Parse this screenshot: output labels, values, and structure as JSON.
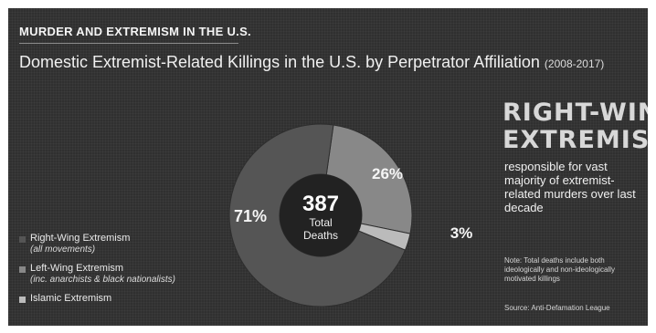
{
  "kicker": "MURDER AND EXTREMISM IN THE U.S.",
  "title": "Domestic Extremist-Related Killings in the U.S. by Perpetrator Affiliation",
  "title_years": "(2008-2017)",
  "headline": {
    "line1": "RIGHT-WING",
    "line2": "EXTREMISTS"
  },
  "blurb": "responsible for vast majority of extremist-related murders over last decade",
  "note": "Note: Total deaths include both ideologically and non-ideologically motivated killings",
  "source": "Source: Anti-Defamation League",
  "center": {
    "value": "387",
    "line1": "Total",
    "line2": "Deaths"
  },
  "legend": [
    {
      "label": "Right-Wing Extremism",
      "sub": "(all movements)",
      "color": "#555555"
    },
    {
      "label": "Left-Wing Extremism",
      "sub": "(inc. anarchists & black nationalists)",
      "color": "#888888"
    },
    {
      "label": "Islamic Extremism",
      "sub": "",
      "color": "#bbbbbb"
    }
  ],
  "chart_data": {
    "type": "pie",
    "donut": true,
    "title": "Domestic Extremist-Related Killings in the U.S. by Perpetrator Affiliation",
    "total": 387,
    "categories": [
      "Right-Wing Extremism",
      "Left-Wing Extremism",
      "Islamic Extremism"
    ],
    "values": [
      71,
      26,
      3
    ],
    "labels": [
      "71%",
      "26%",
      "3%"
    ],
    "colors": [
      "#555555",
      "#888888",
      "#bbbbbb"
    ],
    "legend_position": "bottom-left"
  }
}
